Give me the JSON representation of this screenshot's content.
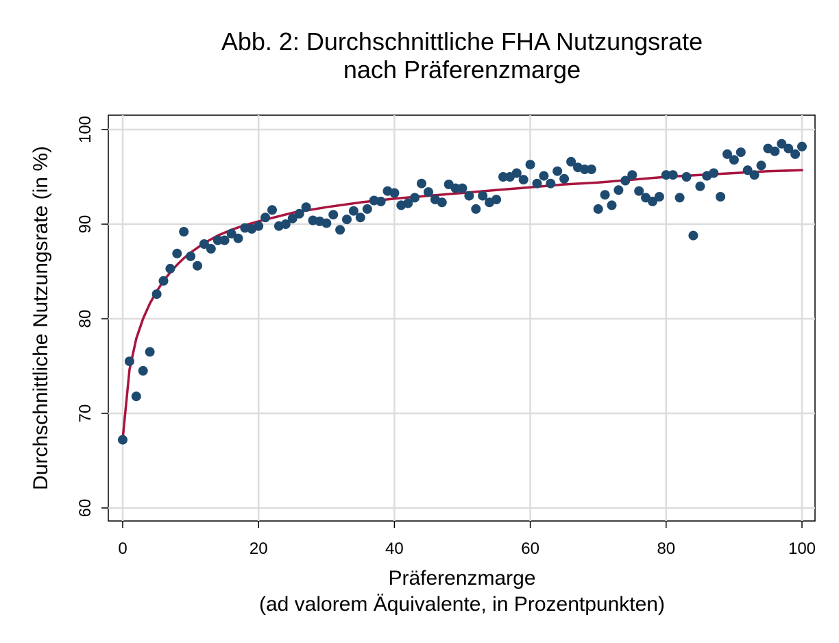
{
  "chart_data": {
    "type": "scatter",
    "title": [
      "Abb. 2: Durchschnittliche FHA Nutzungsrate",
      "nach Präferenzmarge"
    ],
    "xlabel": [
      "Präferenzmarge",
      "(ad valorem Äquivalente, in Prozentpunkten)"
    ],
    "ylabel": "Durchschnittliche Nutzungsrate (in %)",
    "xlim": [
      0,
      100
    ],
    "ylim": [
      60,
      100
    ],
    "x_ticks": [
      "0",
      "20",
      "40",
      "60",
      "80",
      "100"
    ],
    "y_ticks": [
      "60",
      "70",
      "80",
      "90",
      "100"
    ],
    "grid": true,
    "point_color": "#1f4a70",
    "line_color": "#a8153f",
    "series": [
      {
        "type": "scatter",
        "x": [
          0,
          1,
          2,
          3,
          4,
          5,
          6,
          7,
          8,
          9,
          10,
          11,
          12,
          13,
          14,
          15,
          16,
          17,
          18,
          19,
          20,
          21,
          22,
          23,
          24,
          25,
          26,
          27,
          28,
          29,
          30,
          31,
          32,
          33,
          34,
          35,
          36,
          37,
          38,
          39,
          40,
          41,
          42,
          43,
          44,
          45,
          46,
          47,
          48,
          49,
          50,
          51,
          52,
          53,
          54,
          55,
          56,
          57,
          58,
          59,
          60,
          61,
          62,
          63,
          64,
          65,
          66,
          67,
          68,
          69,
          70,
          71,
          72,
          73,
          74,
          75,
          76,
          77,
          78,
          79,
          80,
          81,
          82,
          83,
          84,
          85,
          86,
          87,
          88,
          89,
          90,
          91,
          92,
          93,
          94,
          95,
          96,
          97,
          98,
          99,
          100
        ],
        "y": [
          67.2,
          75.5,
          71.8,
          74.5,
          76.5,
          82.6,
          84.0,
          85.3,
          86.9,
          89.2,
          86.6,
          85.6,
          87.9,
          87.4,
          88.3,
          88.3,
          89.0,
          88.5,
          89.6,
          89.5,
          89.8,
          90.7,
          91.5,
          89.8,
          90.0,
          90.6,
          91.1,
          91.8,
          90.4,
          90.3,
          90.1,
          91.0,
          89.4,
          90.5,
          91.4,
          90.7,
          91.6,
          92.5,
          92.4,
          93.5,
          93.3,
          92.0,
          92.2,
          92.8,
          94.3,
          93.4,
          92.6,
          92.3,
          94.2,
          93.8,
          93.8,
          93.0,
          91.6,
          93.0,
          92.3,
          92.6,
          95.0,
          95.0,
          95.4,
          94.7,
          96.3,
          94.3,
          95.1,
          94.3,
          95.6,
          94.8,
          96.6,
          96.0,
          95.8,
          95.8,
          91.6,
          93.1,
          92.0,
          93.6,
          94.6,
          95.2,
          93.5,
          92.8,
          92.4,
          92.9,
          95.2,
          95.2,
          92.8,
          95.0,
          88.8,
          94.0,
          95.1,
          95.4,
          92.9,
          97.4,
          96.8,
          97.6,
          95.7,
          95.2,
          96.2,
          98.0,
          97.7,
          98.5,
          98.0,
          97.4,
          98.2
        ]
      },
      {
        "type": "line",
        "x": [
          0,
          1,
          2,
          3,
          4,
          5,
          6,
          7,
          8,
          9,
          10,
          12,
          14,
          16,
          18,
          20,
          25,
          30,
          35,
          40,
          45,
          50,
          55,
          60,
          65,
          70,
          75,
          80,
          85,
          90,
          95,
          100
        ],
        "y": [
          67.3,
          74.6,
          77.9,
          80.0,
          81.6,
          82.9,
          84.0,
          84.9,
          85.7,
          86.4,
          87.0,
          88.0,
          88.8,
          89.4,
          89.9,
          90.3,
          91.2,
          91.8,
          92.3,
          92.7,
          93.0,
          93.3,
          93.6,
          93.9,
          94.2,
          94.4,
          94.7,
          95.0,
          95.2,
          95.4,
          95.6,
          95.7
        ]
      }
    ]
  }
}
